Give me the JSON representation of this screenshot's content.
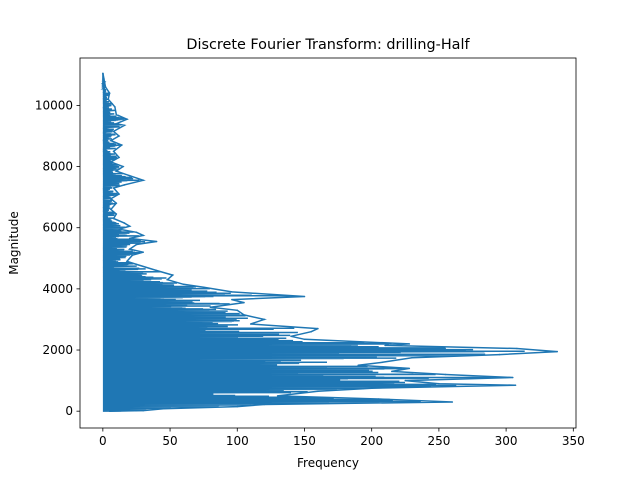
{
  "chart_data": {
    "type": "line",
    "title": "Discrete Fourier Transform: drilling-Half",
    "xlabel": "Frequency",
    "ylabel": "Magnitude",
    "xlim": [
      -17,
      352
    ],
    "ylim": [
      -550,
      11550
    ],
    "xticks": [
      0,
      50,
      100,
      150,
      200,
      250,
      300,
      350
    ],
    "yticks": [
      0,
      2000,
      4000,
      6000,
      8000,
      10000
    ],
    "grid": false,
    "legend": "none",
    "series": [
      {
        "color": "#1f77b4",
        "points": [
          [
            0,
            11050
          ],
          [
            2,
            10600
          ],
          [
            5,
            10400
          ],
          [
            4,
            10200
          ],
          [
            7,
            10050
          ],
          [
            9,
            9950
          ],
          [
            10,
            9700
          ],
          [
            18,
            9550
          ],
          [
            10,
            9400
          ],
          [
            16,
            9350
          ],
          [
            8,
            9150
          ],
          [
            12,
            9000
          ],
          [
            6,
            8850
          ],
          [
            14,
            8700
          ],
          [
            8,
            8500
          ],
          [
            12,
            8300
          ],
          [
            6,
            8150
          ],
          [
            15,
            8000
          ],
          [
            10,
            7850
          ],
          [
            20,
            7700
          ],
          [
            30,
            7550
          ],
          [
            16,
            7400
          ],
          [
            8,
            7300
          ],
          [
            12,
            7100
          ],
          [
            6,
            6950
          ],
          [
            10,
            6800
          ],
          [
            6,
            6600
          ],
          [
            10,
            6450
          ],
          [
            8,
            6300
          ],
          [
            16,
            6150
          ],
          [
            20,
            6050
          ],
          [
            12,
            5950
          ],
          [
            25,
            5850
          ],
          [
            30,
            5750
          ],
          [
            20,
            5650
          ],
          [
            40,
            5550
          ],
          [
            25,
            5450
          ],
          [
            20,
            5300
          ],
          [
            30,
            5200
          ],
          [
            22,
            5100
          ],
          [
            18,
            4900
          ],
          [
            25,
            4800
          ],
          [
            40,
            4600
          ],
          [
            52,
            4450
          ],
          [
            48,
            4300
          ],
          [
            60,
            4150
          ],
          [
            75,
            4050
          ],
          [
            96,
            3900
          ],
          [
            150,
            3750
          ],
          [
            96,
            3650
          ],
          [
            105,
            3550
          ],
          [
            80,
            3400
          ],
          [
            100,
            3300
          ],
          [
            105,
            3150
          ],
          [
            120,
            3000
          ],
          [
            110,
            2850
          ],
          [
            160,
            2700
          ],
          [
            155,
            2600
          ],
          [
            140,
            2450
          ],
          [
            150,
            2350
          ],
          [
            228,
            2200
          ],
          [
            210,
            2150
          ],
          [
            308,
            2050
          ],
          [
            338,
            1950
          ],
          [
            295,
            1850
          ],
          [
            230,
            1750
          ],
          [
            208,
            1600
          ],
          [
            190,
            1500
          ],
          [
            228,
            1400
          ],
          [
            215,
            1300
          ],
          [
            255,
            1200
          ],
          [
            305,
            1100
          ],
          [
            225,
            1000
          ],
          [
            250,
            900
          ],
          [
            307,
            850
          ],
          [
            200,
            750
          ],
          [
            160,
            650
          ],
          [
            130,
            500
          ],
          [
            205,
            400
          ],
          [
            260,
            300
          ],
          [
            120,
            220
          ],
          [
            100,
            150
          ],
          [
            45,
            80
          ],
          [
            30,
            20
          ],
          [
            5,
            0
          ]
        ]
      }
    ]
  }
}
